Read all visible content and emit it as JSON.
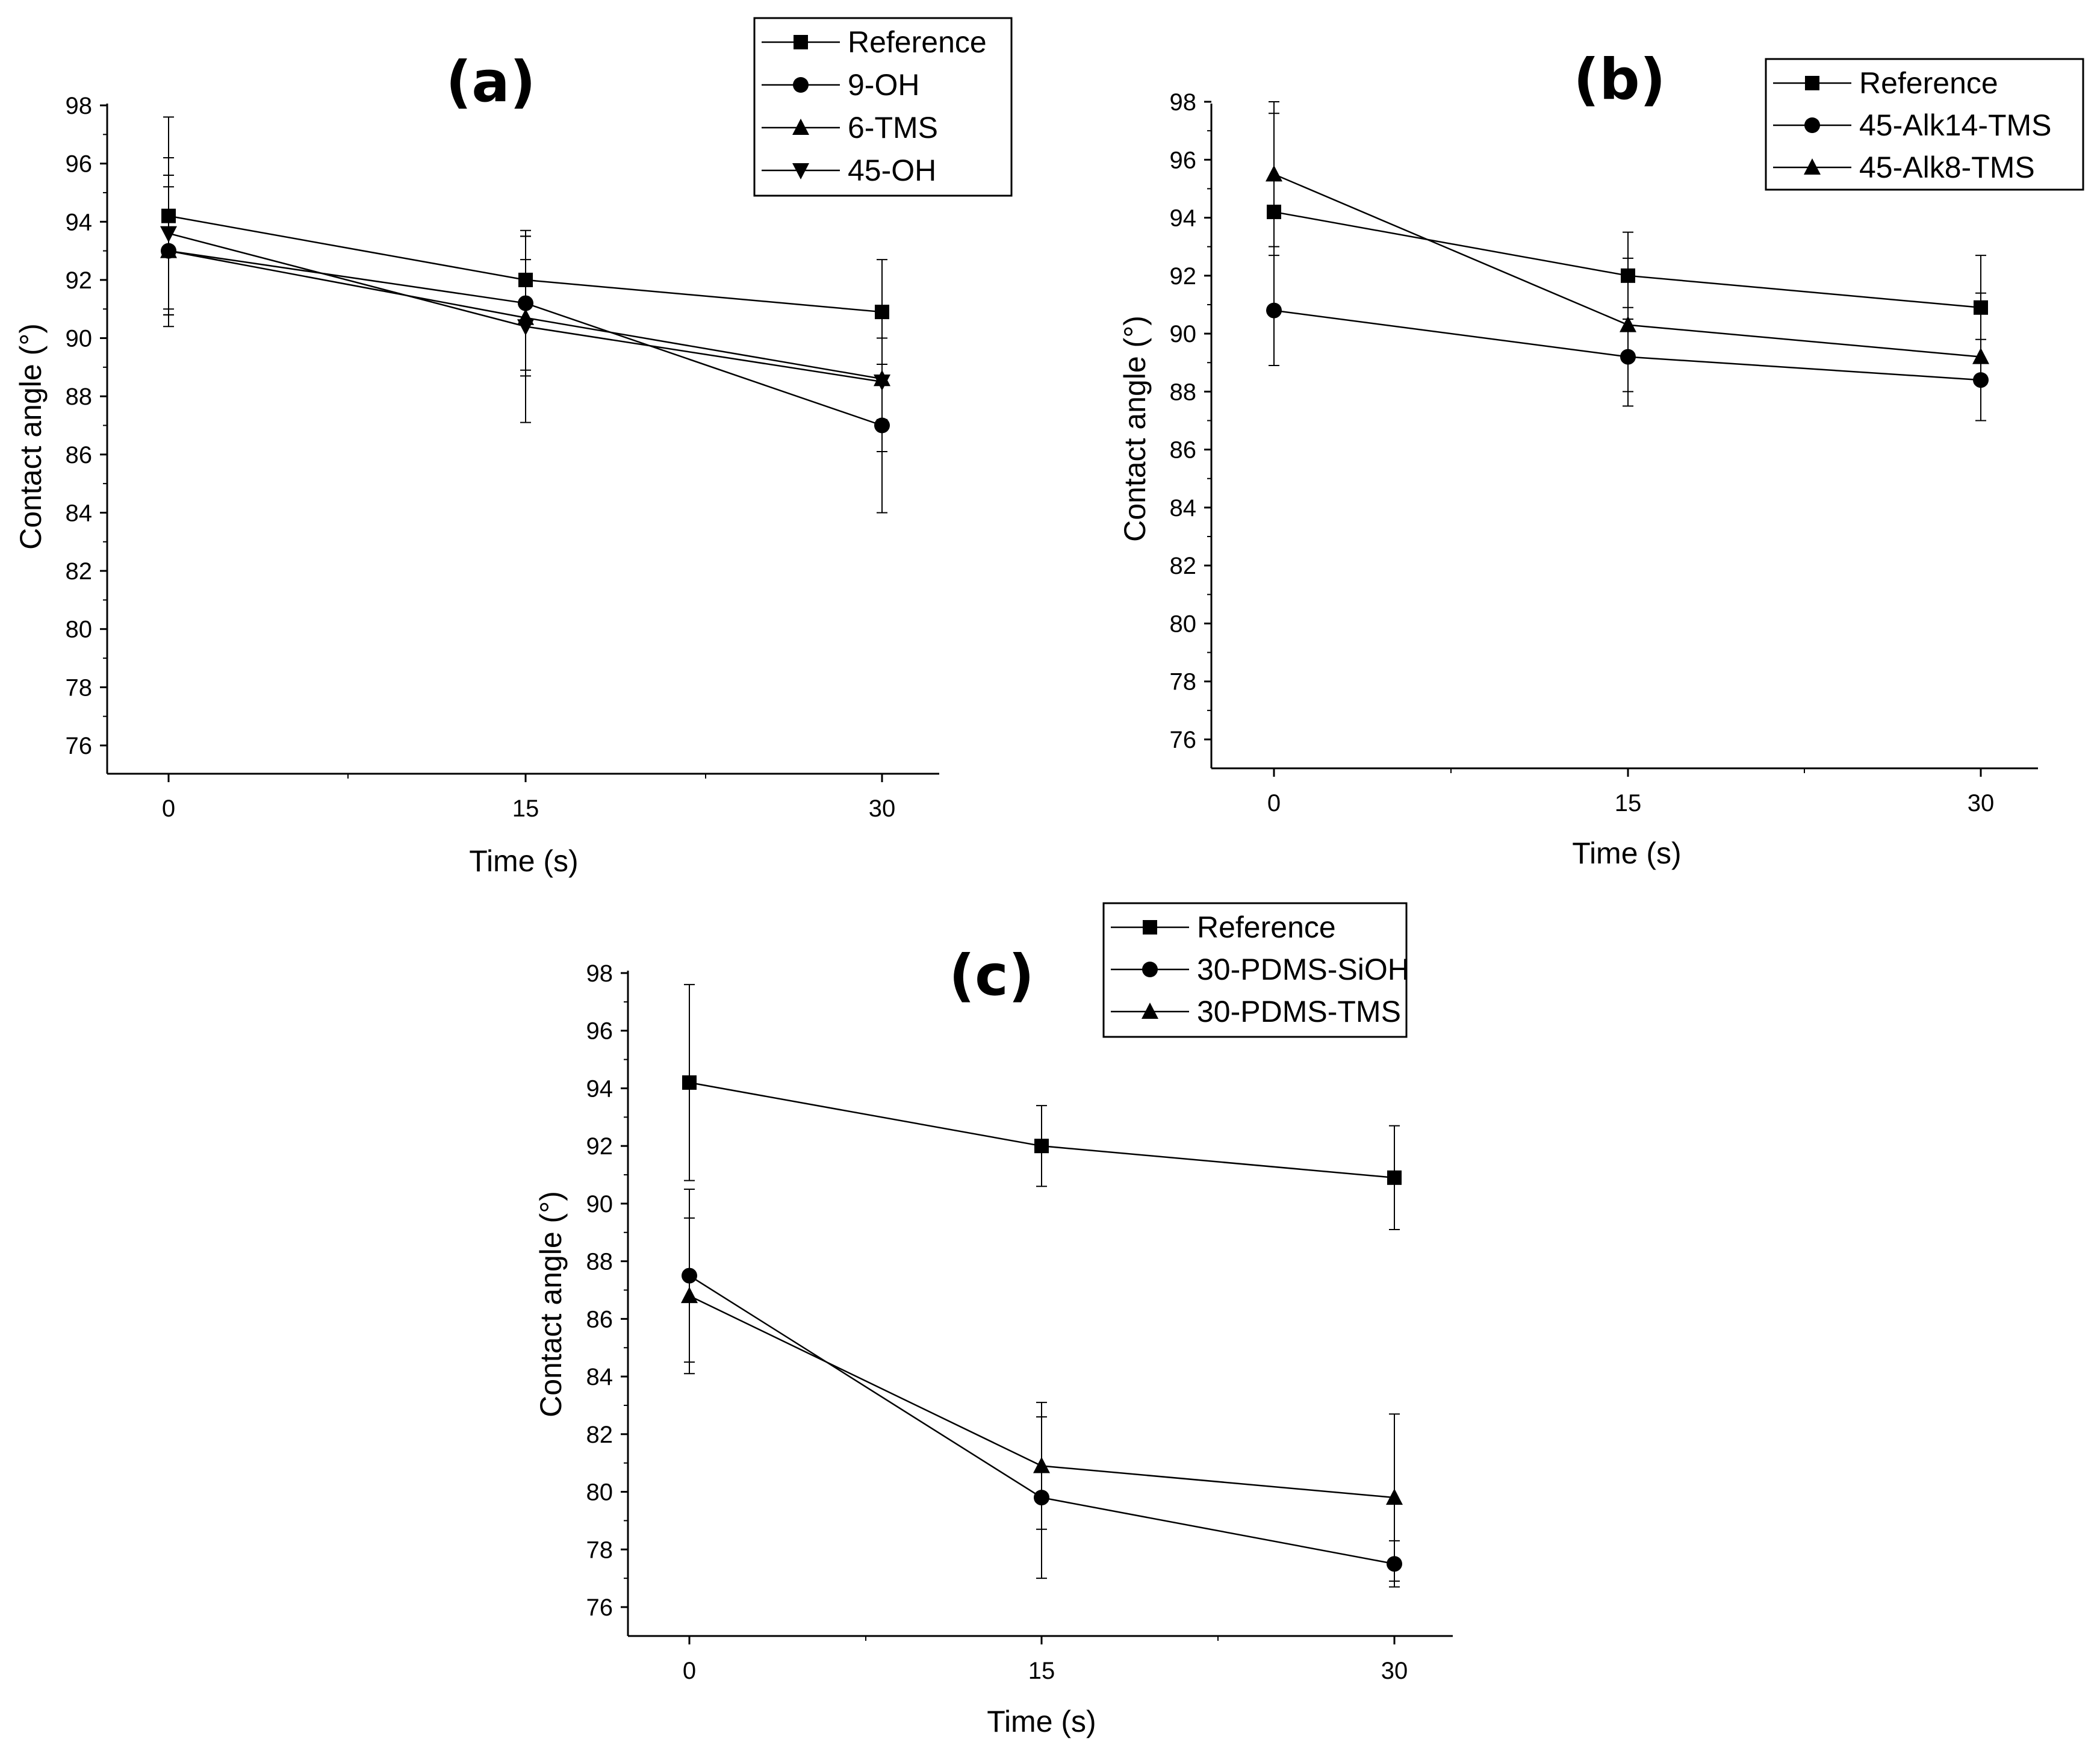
{
  "chart_data": [
    {
      "type": "line",
      "panel_label": "(a)",
      "xlabel": "Time (s)",
      "ylabel": "Contact angle (°)",
      "x": [
        0,
        15,
        30
      ],
      "x_tick_labels": [
        "0",
        "15",
        "30"
      ],
      "ylim": [
        75,
        98
      ],
      "y_tick_labels": [
        "76",
        "78",
        "80",
        "82",
        "84",
        "86",
        "88",
        "90",
        "92",
        "94",
        "96",
        "98"
      ],
      "legend_position": "top-right",
      "series": [
        {
          "name": "Reference",
          "marker": "square",
          "values": [
            94.2,
            92.0,
            90.9
          ],
          "errors": [
            3.4,
            1.5,
            1.8
          ]
        },
        {
          "name": "9-OH",
          "marker": "circle",
          "values": [
            93.0,
            91.2,
            87.0
          ],
          "errors": [
            2.6,
            2.3,
            3.0
          ]
        },
        {
          "name": "6-TMS",
          "marker": "triangle-up",
          "values": [
            93.0,
            90.7,
            88.6
          ],
          "errors": [
            2.2,
            2.0,
            1.4
          ]
        },
        {
          "name": "45-OH",
          "marker": "triangle-down",
          "values": [
            93.6,
            90.4,
            88.5
          ],
          "errors": [
            2.6,
            3.3,
            2.4
          ]
        }
      ]
    },
    {
      "type": "line",
      "panel_label": "(b)",
      "xlabel": "Time (s)",
      "ylabel": "Contact angle (°)",
      "x": [
        0,
        15,
        30
      ],
      "x_tick_labels": [
        "0",
        "15",
        "30"
      ],
      "ylim": [
        75,
        98
      ],
      "y_tick_labels": [
        "76",
        "78",
        "80",
        "82",
        "84",
        "86",
        "88",
        "90",
        "92",
        "94",
        "96",
        "98"
      ],
      "legend_position": "top-right",
      "series": [
        {
          "name": "Reference",
          "marker": "square",
          "values": [
            94.2,
            92.0,
            90.9
          ],
          "errors": [
            3.4,
            1.5,
            1.8
          ]
        },
        {
          "name": "45-Alk14-TMS",
          "marker": "circle",
          "values": [
            90.8,
            89.2,
            88.4
          ],
          "errors": [
            1.9,
            1.7,
            1.4
          ]
        },
        {
          "name": "45-Alk8-TMS",
          "marker": "triangle-up",
          "values": [
            95.5,
            90.3,
            89.2
          ],
          "errors": [
            2.5,
            2.3,
            2.2
          ]
        }
      ]
    },
    {
      "type": "line",
      "panel_label": "(c)",
      "xlabel": "Time (s)",
      "ylabel": "Contact angle (°)",
      "x": [
        0,
        15,
        30
      ],
      "x_tick_labels": [
        "0",
        "15",
        "30"
      ],
      "ylim": [
        75,
        98
      ],
      "y_tick_labels": [
        "76",
        "78",
        "80",
        "82",
        "84",
        "86",
        "88",
        "90",
        "92",
        "94",
        "96",
        "98"
      ],
      "legend_position": "top-right",
      "series": [
        {
          "name": "Reference",
          "marker": "square",
          "values": [
            94.2,
            92.0,
            90.9
          ],
          "errors": [
            3.4,
            1.4,
            1.8
          ]
        },
        {
          "name": "30-PDMS-SiOH",
          "marker": "circle",
          "values": [
            87.5,
            79.8,
            77.5
          ],
          "errors": [
            3.0,
            2.8,
            0.8
          ]
        },
        {
          "name": "30-PDMS-TMS",
          "marker": "triangle-up",
          "values": [
            86.8,
            80.9,
            79.8
          ],
          "errors": [
            2.7,
            2.2,
            2.9
          ]
        }
      ]
    }
  ]
}
